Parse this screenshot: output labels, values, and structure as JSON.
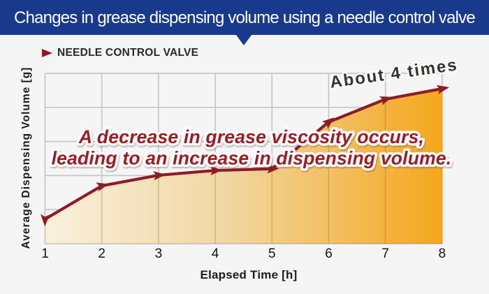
{
  "header": {
    "title": "Changes in grease dispensing volume using a needle control valve",
    "background_color": "#18398c",
    "text_color": "#ffffff"
  },
  "legend": {
    "marker_icon": "right-triangle",
    "marker_color": "#8e1b21",
    "label": "NEEDLE CONTROL VALVE"
  },
  "annotations": {
    "viscosity_line1": "A decrease in grease viscosity occurs,",
    "viscosity_line2": "leading to an increase in dispensing volume.",
    "viscosity_color": "#9b1c23",
    "about": "About 4 times",
    "about_color": "#38322c",
    "outline_color": "#ffffff"
  },
  "axes": {
    "x_label": "Elapsed Time [h]",
    "y_label": "Average Dispensing Volume [g]",
    "x_ticks": [
      "1",
      "2",
      "3",
      "4",
      "5",
      "6",
      "7",
      "8"
    ]
  },
  "chart_data": {
    "type": "area",
    "title": "Changes in grease dispensing volume using a needle control valve",
    "xlabel": "Elapsed Time [h]",
    "ylabel": "Average Dispensing Volume [g]",
    "series_name": "NEEDLE CONTROL VALVE",
    "x": [
      1,
      2,
      3,
      4,
      5,
      6,
      7,
      8
    ],
    "values": [
      0.72,
      1.7,
      2.01,
      2.15,
      2.2,
      3.57,
      4.24,
      4.55
    ],
    "value_units": "grid divisions (y axis unlabeled)",
    "xlim": [
      1,
      8
    ],
    "ylim": [
      0,
      5
    ],
    "grid": true,
    "y_tick_labels_visible": false,
    "legend_position": "top-left",
    "line_color": "#8e1c24",
    "marker": "arrowhead",
    "area_gradient": [
      "#f9f0dc",
      "#f1d7a4",
      "#f5a71c"
    ],
    "annotations": [
      {
        "text": "About 4 times",
        "position": "above point x=7..8",
        "rotation_deg": -8
      },
      {
        "text": "A decrease in grease viscosity occurs, leading to an increase in dispensing volume.",
        "position": "center of plot"
      }
    ]
  }
}
